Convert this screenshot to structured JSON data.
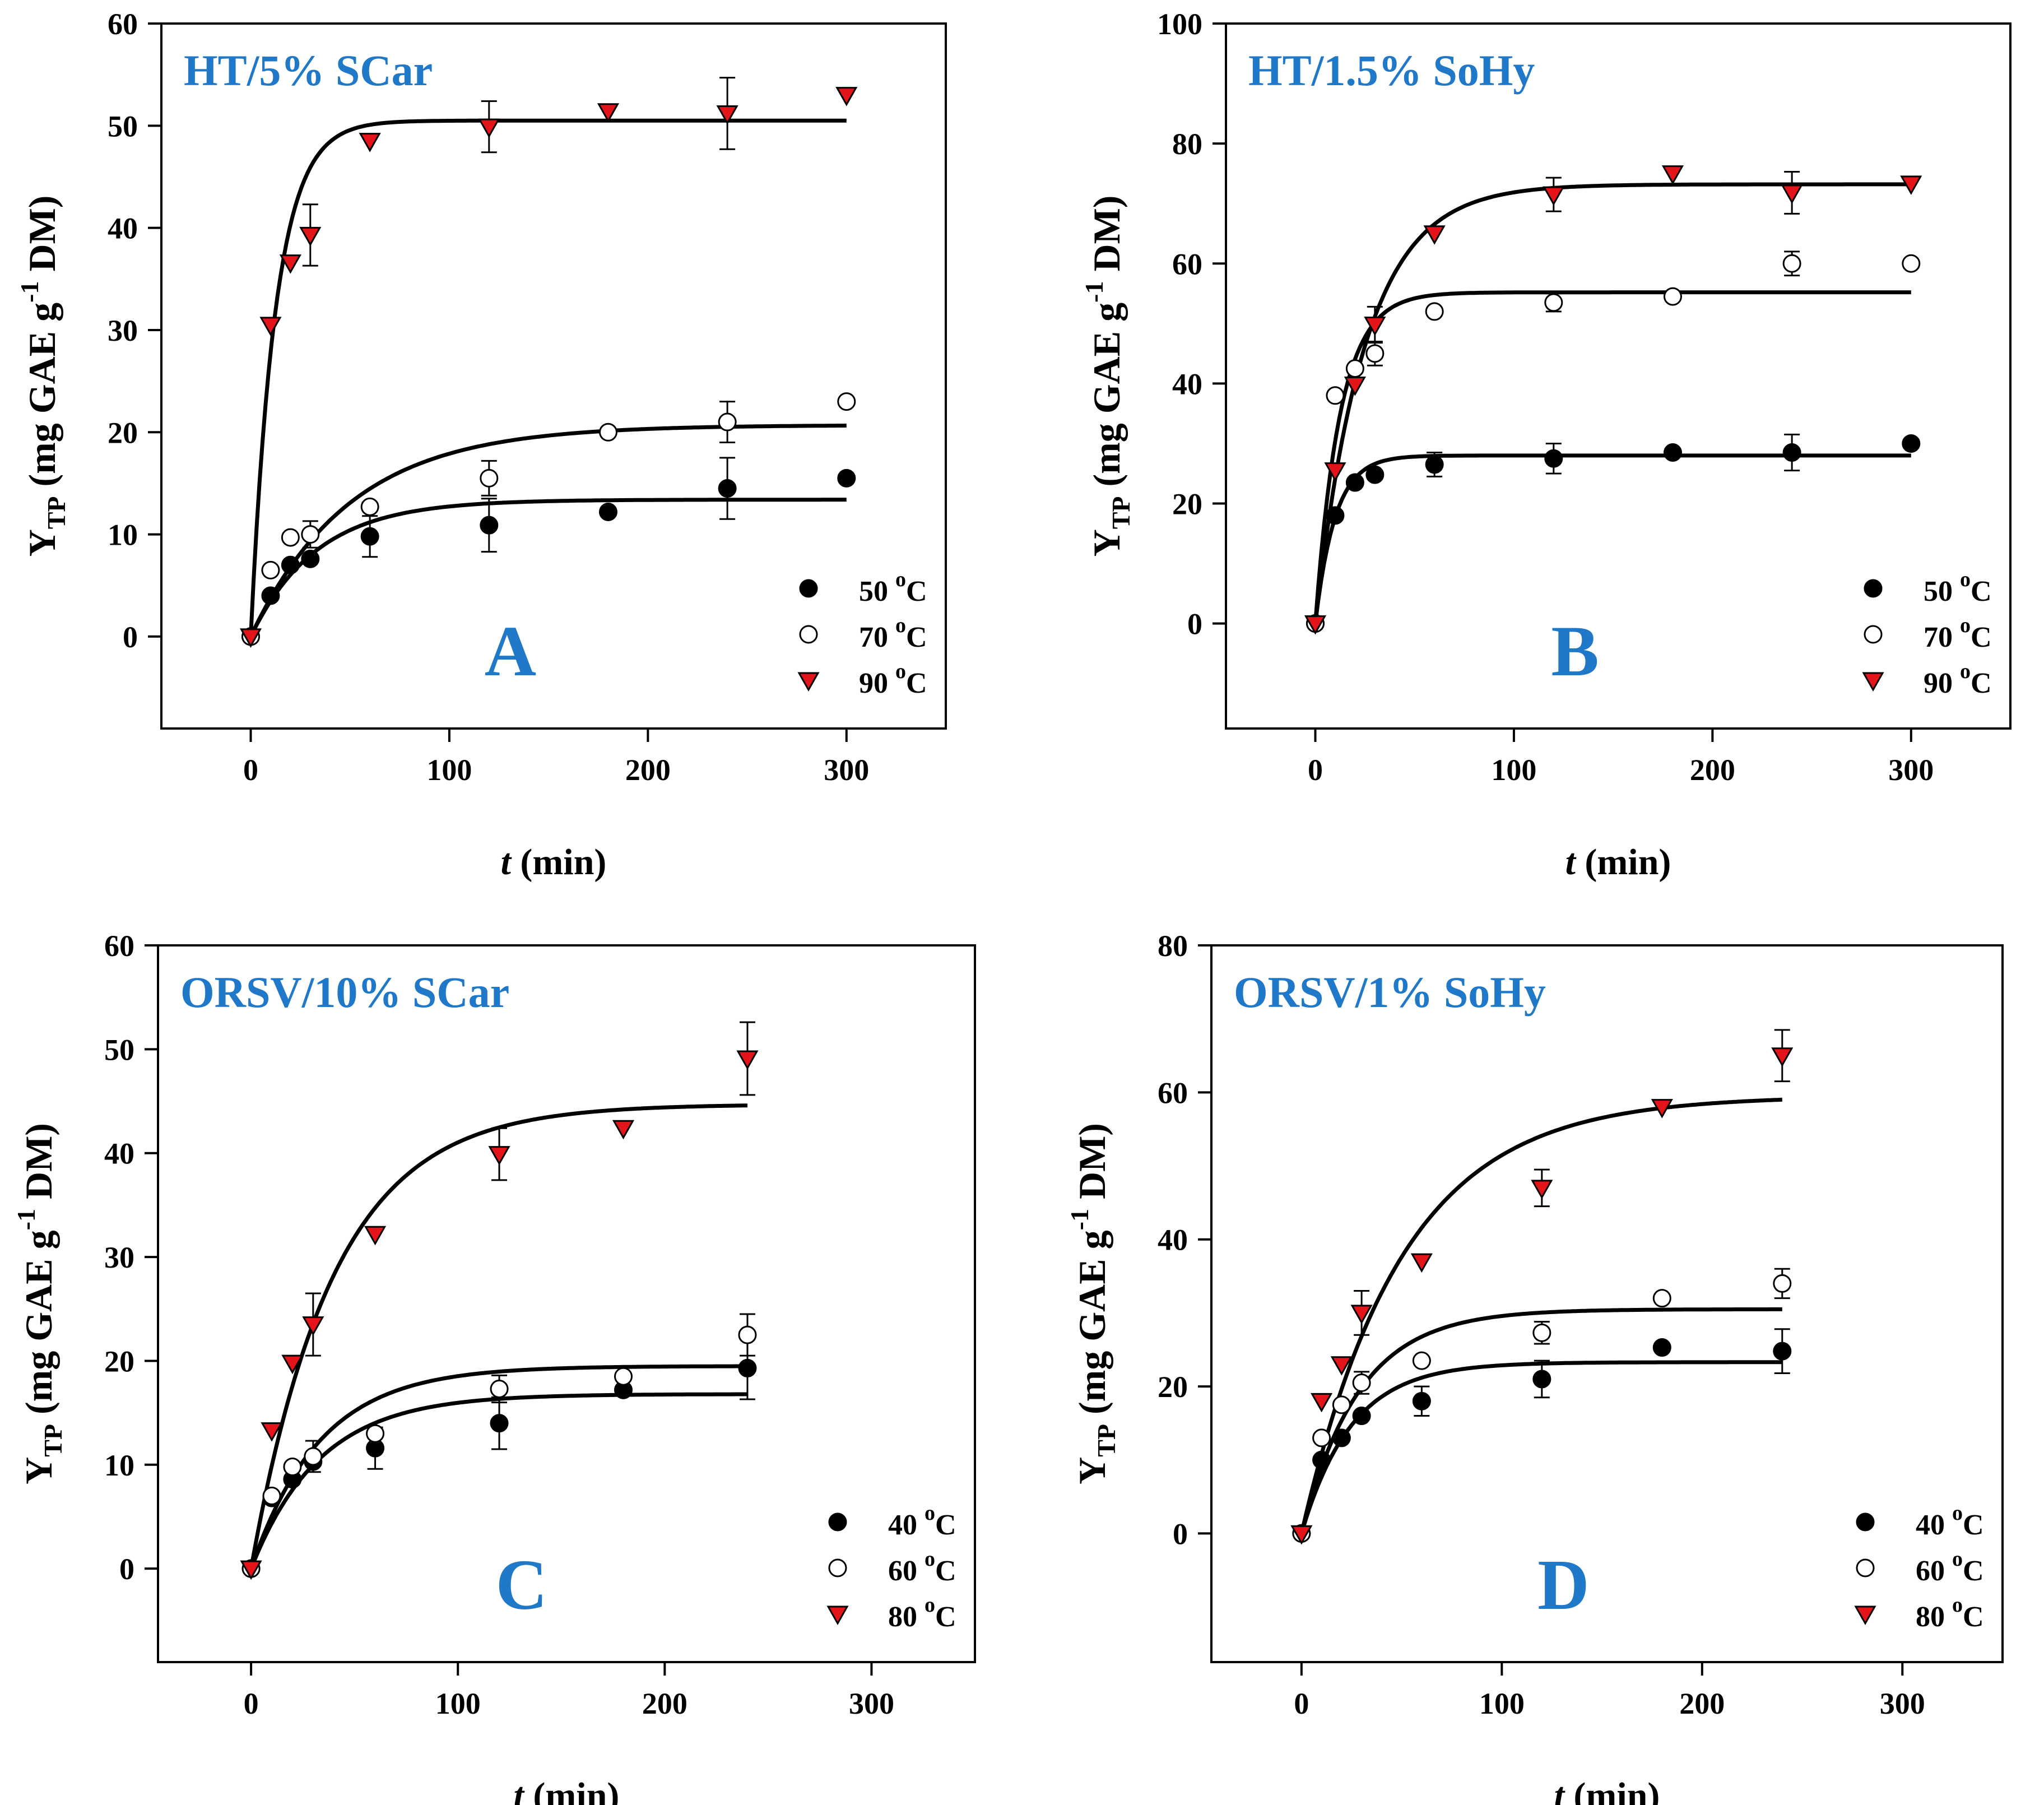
{
  "colors": {
    "accent": "#1f78c8",
    "marker_fill_red": "#e3141a",
    "axis": "#000000",
    "open_fill": "#ffffff",
    "closed_fill": "#000000"
  },
  "chart_data": [
    {
      "type": "scatter",
      "panel_label": "A",
      "title": "HT/5% SCar",
      "xlabel": {
        "italic": "t",
        "rest": " (min)"
      },
      "ylabel": {
        "main": "Y",
        "sub": "TP",
        "mid": " (mg GAE g",
        "sup": "-1",
        "end": " DM)"
      },
      "xlim": [
        -45,
        350
      ],
      "ylim": [
        -9,
        60
      ],
      "xticks": [
        "0",
        "100",
        "200",
        "300"
      ],
      "yticks": [
        "0",
        "10",
        "20",
        "30",
        "40",
        "50",
        "60"
      ],
      "legend_position": "bottom-right",
      "series": [
        {
          "name": "50 °C",
          "legend_value": "50",
          "legend_unit_sup": "o",
          "legend_unit": "C",
          "marker": "filled-circle",
          "x": [
            0,
            10,
            20,
            30,
            60,
            120,
            180,
            240,
            300
          ],
          "y": [
            0,
            4,
            7,
            7.6,
            9.8,
            10.9,
            12.2,
            14.5,
            15.5
          ],
          "err": [
            0,
            0,
            0,
            0,
            2,
            2.6,
            0,
            3,
            0
          ],
          "fit": {
            "ymax": 13.4,
            "k": 0.03
          }
        },
        {
          "name": "70 °C",
          "legend_value": "70",
          "legend_unit_sup": "o",
          "legend_unit": "C",
          "marker": "open-circle",
          "x": [
            0,
            10,
            20,
            30,
            60,
            120,
            180,
            240,
            300
          ],
          "y": [
            0,
            6.5,
            9.7,
            10,
            12.7,
            15.5,
            20,
            21,
            23
          ],
          "err": [
            0,
            0,
            0,
            1.3,
            0,
            1.7,
            0,
            2,
            0
          ],
          "fit": {
            "ymax": 20.7,
            "k": 0.02
          }
        },
        {
          "name": "90 °C",
          "legend_value": "90",
          "legend_unit_sup": "o",
          "legend_unit": "C",
          "marker": "red-triangle-down",
          "x": [
            0,
            10,
            20,
            30,
            60,
            120,
            180,
            240,
            300
          ],
          "y": [
            0,
            30.5,
            36.6,
            39.3,
            48.5,
            49.9,
            51.4,
            51.2,
            53
          ],
          "err": [
            0,
            0,
            0,
            3,
            0,
            2.5,
            0,
            3.5,
            0
          ],
          "fit": {
            "ymax": 50.5,
            "k": 0.08
          }
        }
      ]
    },
    {
      "type": "scatter",
      "panel_label": "B",
      "title": "HT/1.5% SoHy",
      "xlabel": {
        "italic": "t",
        "rest": " (min)"
      },
      "ylabel": {
        "main": "Y",
        "sub": "TP",
        "mid": " (mg GAE g",
        "sup": "-1",
        "end": " DM)"
      },
      "xlim": [
        -45,
        350
      ],
      "ylim": [
        -17.5,
        100
      ],
      "xticks": [
        "0",
        "100",
        "200",
        "300"
      ],
      "yticks": [
        "0",
        "20",
        "40",
        "60",
        "80",
        "100"
      ],
      "legend_position": "bottom-right",
      "series": [
        {
          "name": "50 °C",
          "legend_value": "50",
          "legend_unit_sup": "o",
          "legend_unit": "C",
          "marker": "filled-circle",
          "x": [
            0,
            10,
            20,
            30,
            60,
            120,
            180,
            240,
            300
          ],
          "y": [
            0,
            18,
            23.5,
            24.8,
            26.5,
            27.5,
            28.5,
            28.5,
            30
          ],
          "err": [
            0,
            0,
            0,
            0,
            2,
            2.5,
            0,
            3,
            0
          ],
          "fit": {
            "ymax": 28,
            "k": 0.1
          }
        },
        {
          "name": "70 °C",
          "legend_value": "70",
          "legend_unit_sup": "o",
          "legend_unit": "C",
          "marker": "open-circle",
          "x": [
            0,
            10,
            20,
            30,
            60,
            120,
            180,
            240,
            300
          ],
          "y": [
            0,
            38,
            42.5,
            45,
            52,
            53.5,
            54.5,
            60,
            60
          ],
          "err": [
            0,
            0,
            0,
            2,
            0,
            1.5,
            0,
            2,
            0
          ],
          "fit": {
            "ymax": 55.2,
            "k": 0.08
          }
        },
        {
          "name": "90 °C",
          "legend_value": "90",
          "legend_unit_sup": "o",
          "legend_unit": "C",
          "marker": "red-triangle-down",
          "x": [
            0,
            10,
            20,
            30,
            60,
            120,
            180,
            240,
            300
          ],
          "y": [
            0,
            25.5,
            39.8,
            49.8,
            65,
            71.5,
            75,
            71.8,
            73.3
          ],
          "err": [
            0,
            0,
            0,
            3,
            0,
            2.8,
            0,
            3.5,
            0
          ],
          "fit": {
            "ymax": 73.2,
            "k": 0.04
          }
        }
      ]
    },
    {
      "type": "scatter",
      "panel_label": "C",
      "title": "ORSV/10% SCar",
      "xlabel": {
        "italic": "t",
        "rest": " (min)"
      },
      "ylabel": {
        "main": "Y",
        "sub": "TP",
        "mid": " (mg GAE g",
        "sup": "-1",
        "end": " DM)"
      },
      "xlim": [
        -45,
        350
      ],
      "ylim": [
        -9,
        60
      ],
      "xticks": [
        "0",
        "100",
        "200",
        "300"
      ],
      "yticks": [
        "0",
        "10",
        "20",
        "30",
        "40",
        "50",
        "60"
      ],
      "legend_position": "bottom-right",
      "series": [
        {
          "name": "40 °C",
          "legend_value": "40",
          "legend_unit_sup": "o",
          "legend_unit": "C",
          "marker": "filled-circle",
          "x": [
            0,
            10,
            20,
            30,
            60,
            120,
            180,
            240
          ],
          "y": [
            0,
            6.8,
            8.6,
            10.3,
            11.6,
            14,
            17.2,
            19.3
          ],
          "err": [
            0,
            0,
            0,
            0,
            2,
            2.5,
            0,
            3
          ],
          "fit": {
            "ymax": 16.8,
            "k": 0.03
          }
        },
        {
          "name": "60 °C",
          "legend_value": "60",
          "legend_unit_sup": "o",
          "legend_unit": "C",
          "marker": "open-circle",
          "x": [
            0,
            10,
            20,
            30,
            60,
            120,
            180,
            240
          ],
          "y": [
            0,
            7,
            9.8,
            10.8,
            13,
            17.3,
            18.5,
            22.5
          ],
          "err": [
            0,
            0,
            0,
            1.5,
            0,
            1.3,
            0,
            2
          ],
          "fit": {
            "ymax": 19.5,
            "k": 0.03
          }
        },
        {
          "name": "80 °C",
          "legend_value": "80",
          "legend_unit_sup": "o",
          "legend_unit": "C",
          "marker": "red-triangle-down",
          "x": [
            0,
            10,
            20,
            30,
            60,
            120,
            180,
            240
          ],
          "y": [
            0,
            13.3,
            19.8,
            23.5,
            32.2,
            39.9,
            42.4,
            49.1
          ],
          "err": [
            0,
            0,
            0,
            3,
            0,
            2.5,
            0,
            3.5
          ],
          "fit": {
            "ymax": 44.7,
            "k": 0.025
          }
        }
      ]
    },
    {
      "type": "scatter",
      "panel_label": "D",
      "title": "ORSV/1% SoHy",
      "xlabel": {
        "italic": "t",
        "rest": " (min)"
      },
      "ylabel": {
        "main": "Y",
        "sub": "TP",
        "mid": " (mg GAE g",
        "sup": "-1",
        "end": " DM)"
      },
      "xlim": [
        -45,
        350
      ],
      "ylim": [
        -17.5,
        80
      ],
      "xticks": [
        "0",
        "100",
        "200",
        "300"
      ],
      "yticks": [
        "0",
        "20",
        "40",
        "60",
        "80"
      ],
      "legend_position": "bottom-right",
      "series": [
        {
          "name": "40 °C",
          "legend_value": "40",
          "legend_unit_sup": "o",
          "legend_unit": "C",
          "marker": "filled-circle",
          "x": [
            0,
            10,
            20,
            30,
            60,
            120,
            180,
            240
          ],
          "y": [
            0,
            10,
            13,
            16,
            18,
            21,
            25.3,
            24.8
          ],
          "err": [
            0,
            0,
            0,
            0,
            2,
            2.5,
            0,
            3
          ],
          "fit": {
            "ymax": 23.3,
            "k": 0.04
          }
        },
        {
          "name": "60 °C",
          "legend_value": "60",
          "legend_unit_sup": "o",
          "legend_unit": "C",
          "marker": "open-circle",
          "x": [
            0,
            10,
            20,
            30,
            60,
            120,
            180,
            240
          ],
          "y": [
            0,
            13,
            17.5,
            20.5,
            23.5,
            27.3,
            32,
            34
          ],
          "err": [
            0,
            0,
            0,
            1.5,
            0,
            1.5,
            0,
            2
          ],
          "fit": {
            "ymax": 30.5,
            "k": 0.035
          }
        },
        {
          "name": "80 °C",
          "legend_value": "80",
          "legend_unit_sup": "o",
          "legend_unit": "C",
          "marker": "red-triangle-down",
          "x": [
            0,
            10,
            20,
            30,
            60,
            120,
            180,
            240
          ],
          "y": [
            0,
            18,
            23,
            30,
            37,
            47,
            58,
            65
          ],
          "err": [
            0,
            0,
            0,
            3,
            0,
            2.5,
            0,
            3.5
          ],
          "fit": {
            "ymax": 59.5,
            "k": 0.02
          }
        }
      ]
    }
  ]
}
